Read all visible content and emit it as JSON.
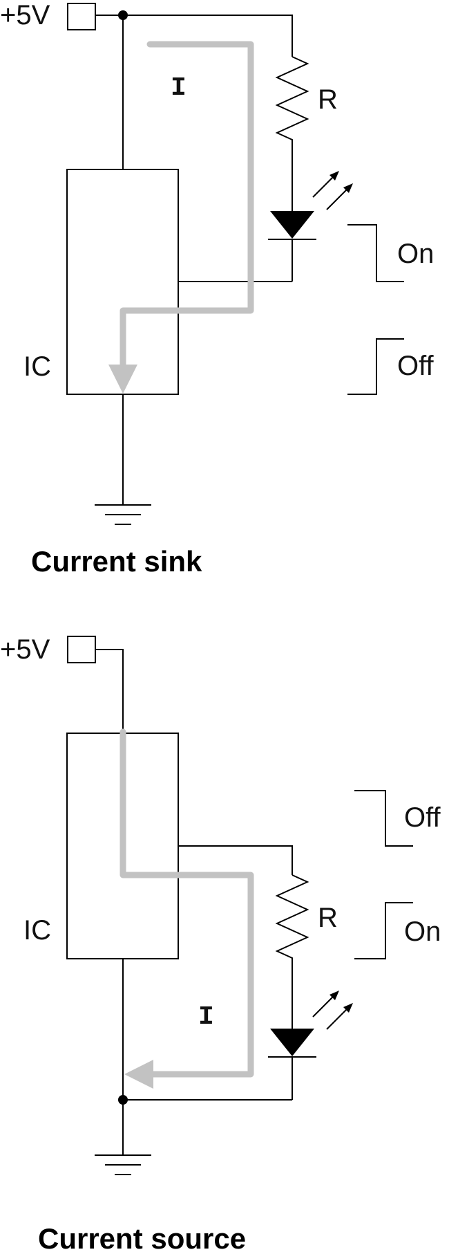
{
  "diagrams": [
    {
      "caption": "Current sink",
      "supply_label": "+5V",
      "ic_label": "IC",
      "resistor_label": "R",
      "current_label": "I",
      "state_upper": "On",
      "state_lower": "Off"
    },
    {
      "caption": "Current source",
      "supply_label": "+5V",
      "ic_label": "IC",
      "resistor_label": "R",
      "current_label": "I",
      "state_upper": "Off",
      "state_lower": "On"
    }
  ]
}
